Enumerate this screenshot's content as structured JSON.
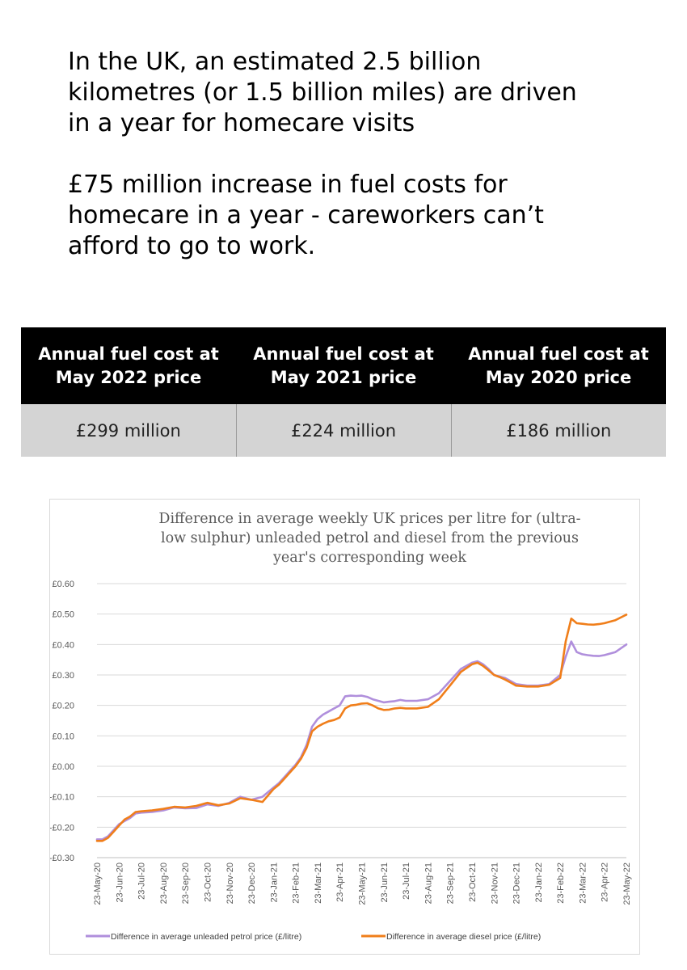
{
  "headline": {
    "line1": "In the UK, an estimated 2.5 billion",
    "line2": "kilometres (or 1.5 billion miles) are driven",
    "line3": "in a year for homecare visits",
    "line4": "£75 million increase in fuel costs for",
    "line5": "homecare in a year - careworkers can’t",
    "line6": "afford to go to work."
  },
  "table": {
    "headers": [
      {
        "line1": "Annual fuel cost at",
        "line2": "May 2022 price"
      },
      {
        "line1": "Annual fuel cost at",
        "line2": "May 2021 price"
      },
      {
        "line1": "Annual fuel cost at",
        "line2": "May 2020 price"
      }
    ],
    "values": [
      "£299 million",
      "£224 million",
      "£186 million"
    ]
  },
  "chart_data": {
    "type": "line",
    "title_lines": [
      "Difference in average weekly UK prices per litre for (ultra-",
      "low sulphur) unleaded petrol and diesel from the previous",
      "year's corresponding week"
    ],
    "xlabel": "",
    "ylabel": "",
    "ylim": [
      -0.3,
      0.6
    ],
    "y_ticks": [
      {
        "value": 0.6,
        "label": "£0.60"
      },
      {
        "value": 0.5,
        "label": "£0.50"
      },
      {
        "value": 0.4,
        "label": "£0.40"
      },
      {
        "value": 0.3,
        "label": "£0.30"
      },
      {
        "value": 0.2,
        "label": "£0.20"
      },
      {
        "value": 0.1,
        "label": "£0.10"
      },
      {
        "value": 0.0,
        "label": "£0.00"
      },
      {
        "value": -0.1,
        "label": "-£0.10"
      },
      {
        "value": -0.2,
        "label": "-£0.20"
      },
      {
        "value": -0.3,
        "label": "-£0.30"
      }
    ],
    "categories": [
      "23-May-20",
      "23-Jun-20",
      "23-Jul-20",
      "23-Aug-20",
      "23-Sep-20",
      "23-Oct-20",
      "23-Nov-20",
      "23-Dec-20",
      "23-Jan-21",
      "23-Feb-21",
      "23-Mar-21",
      "23-Apr-21",
      "23-May-21",
      "23-Jun-21",
      "23-Jul-21",
      "23-Aug-21",
      "23-Sep-21",
      "23-Oct-21",
      "23-Nov-21",
      "23-Dec-21",
      "23-Jan-22",
      "23-Feb-22",
      "23-Mar-22",
      "23-Apr-22",
      "23-May-22"
    ],
    "grid": true,
    "legend_position": "bottom",
    "series": [
      {
        "name": "Difference in average unleaded petrol price (£/litre)",
        "color": "#b08fdc",
        "x": [
          0,
          0.25,
          0.5,
          0.75,
          1,
          1.25,
          1.5,
          1.75,
          2,
          2.5,
          3,
          3.5,
          4,
          4.5,
          5,
          5.5,
          6,
          6.5,
          7,
          7.5,
          8,
          8.25,
          8.5,
          8.75,
          9,
          9.25,
          9.5,
          9.75,
          10,
          10.25,
          10.5,
          10.75,
          11,
          11.25,
          11.5,
          11.75,
          12,
          12.25,
          12.5,
          12.75,
          13,
          13.25,
          13.5,
          13.75,
          14,
          14.5,
          15,
          15.5,
          16,
          16.5,
          17,
          17.25,
          17.5,
          17.75,
          18,
          18.25,
          18.5,
          18.75,
          19,
          19.5,
          20,
          20.5,
          21,
          21.25,
          21.5,
          21.75,
          22,
          22.25,
          22.5,
          22.75,
          23,
          23.5,
          24
        ],
        "values": [
          -0.24,
          -0.24,
          -0.23,
          -0.21,
          -0.19,
          -0.18,
          -0.17,
          -0.155,
          -0.152,
          -0.15,
          -0.145,
          -0.135,
          -0.138,
          -0.137,
          -0.125,
          -0.13,
          -0.12,
          -0.1,
          -0.11,
          -0.1,
          -0.07,
          -0.055,
          -0.035,
          -0.015,
          0.005,
          0.03,
          0.07,
          0.13,
          0.155,
          0.17,
          0.18,
          0.19,
          0.2,
          0.23,
          0.232,
          0.231,
          0.232,
          0.228,
          0.22,
          0.215,
          0.21,
          0.212,
          0.214,
          0.218,
          0.215,
          0.215,
          0.22,
          0.24,
          0.28,
          0.32,
          0.34,
          0.345,
          0.335,
          0.32,
          0.3,
          0.295,
          0.29,
          0.28,
          0.27,
          0.265,
          0.265,
          0.27,
          0.3,
          0.36,
          0.41,
          0.375,
          0.368,
          0.365,
          0.363,
          0.362,
          0.365,
          0.375,
          0.4
        ]
      },
      {
        "name": "Difference in average diesel price (£/litre)",
        "color": "#f07e1a",
        "x": [
          0,
          0.25,
          0.5,
          0.75,
          1,
          1.25,
          1.5,
          1.75,
          2,
          2.5,
          3,
          3.5,
          4,
          4.5,
          5,
          5.5,
          6,
          6.5,
          7,
          7.5,
          8,
          8.25,
          8.5,
          8.75,
          9,
          9.25,
          9.5,
          9.75,
          10,
          10.25,
          10.5,
          10.75,
          11,
          11.25,
          11.5,
          11.75,
          12,
          12.25,
          12.5,
          12.75,
          13,
          13.25,
          13.5,
          13.75,
          14,
          14.5,
          15,
          15.5,
          16,
          16.5,
          17,
          17.25,
          17.5,
          17.75,
          18,
          18.25,
          18.5,
          18.75,
          19,
          19.5,
          20,
          20.5,
          21,
          21.25,
          21.5,
          21.75,
          22,
          22.25,
          22.5,
          22.75,
          23,
          23.5,
          24
        ],
        "values": [
          -0.245,
          -0.245,
          -0.235,
          -0.215,
          -0.195,
          -0.175,
          -0.165,
          -0.15,
          -0.148,
          -0.145,
          -0.14,
          -0.133,
          -0.135,
          -0.13,
          -0.12,
          -0.128,
          -0.122,
          -0.105,
          -0.11,
          -0.117,
          -0.075,
          -0.06,
          -0.04,
          -0.02,
          0.0,
          0.025,
          0.06,
          0.115,
          0.13,
          0.14,
          0.148,
          0.152,
          0.16,
          0.19,
          0.2,
          0.202,
          0.206,
          0.207,
          0.2,
          0.19,
          0.185,
          0.186,
          0.19,
          0.192,
          0.19,
          0.19,
          0.195,
          0.22,
          0.265,
          0.31,
          0.335,
          0.34,
          0.33,
          0.315,
          0.3,
          0.293,
          0.285,
          0.275,
          0.265,
          0.262,
          0.262,
          0.268,
          0.29,
          0.41,
          0.485,
          0.47,
          0.468,
          0.466,
          0.465,
          0.467,
          0.47,
          0.48,
          0.498
        ]
      }
    ]
  }
}
